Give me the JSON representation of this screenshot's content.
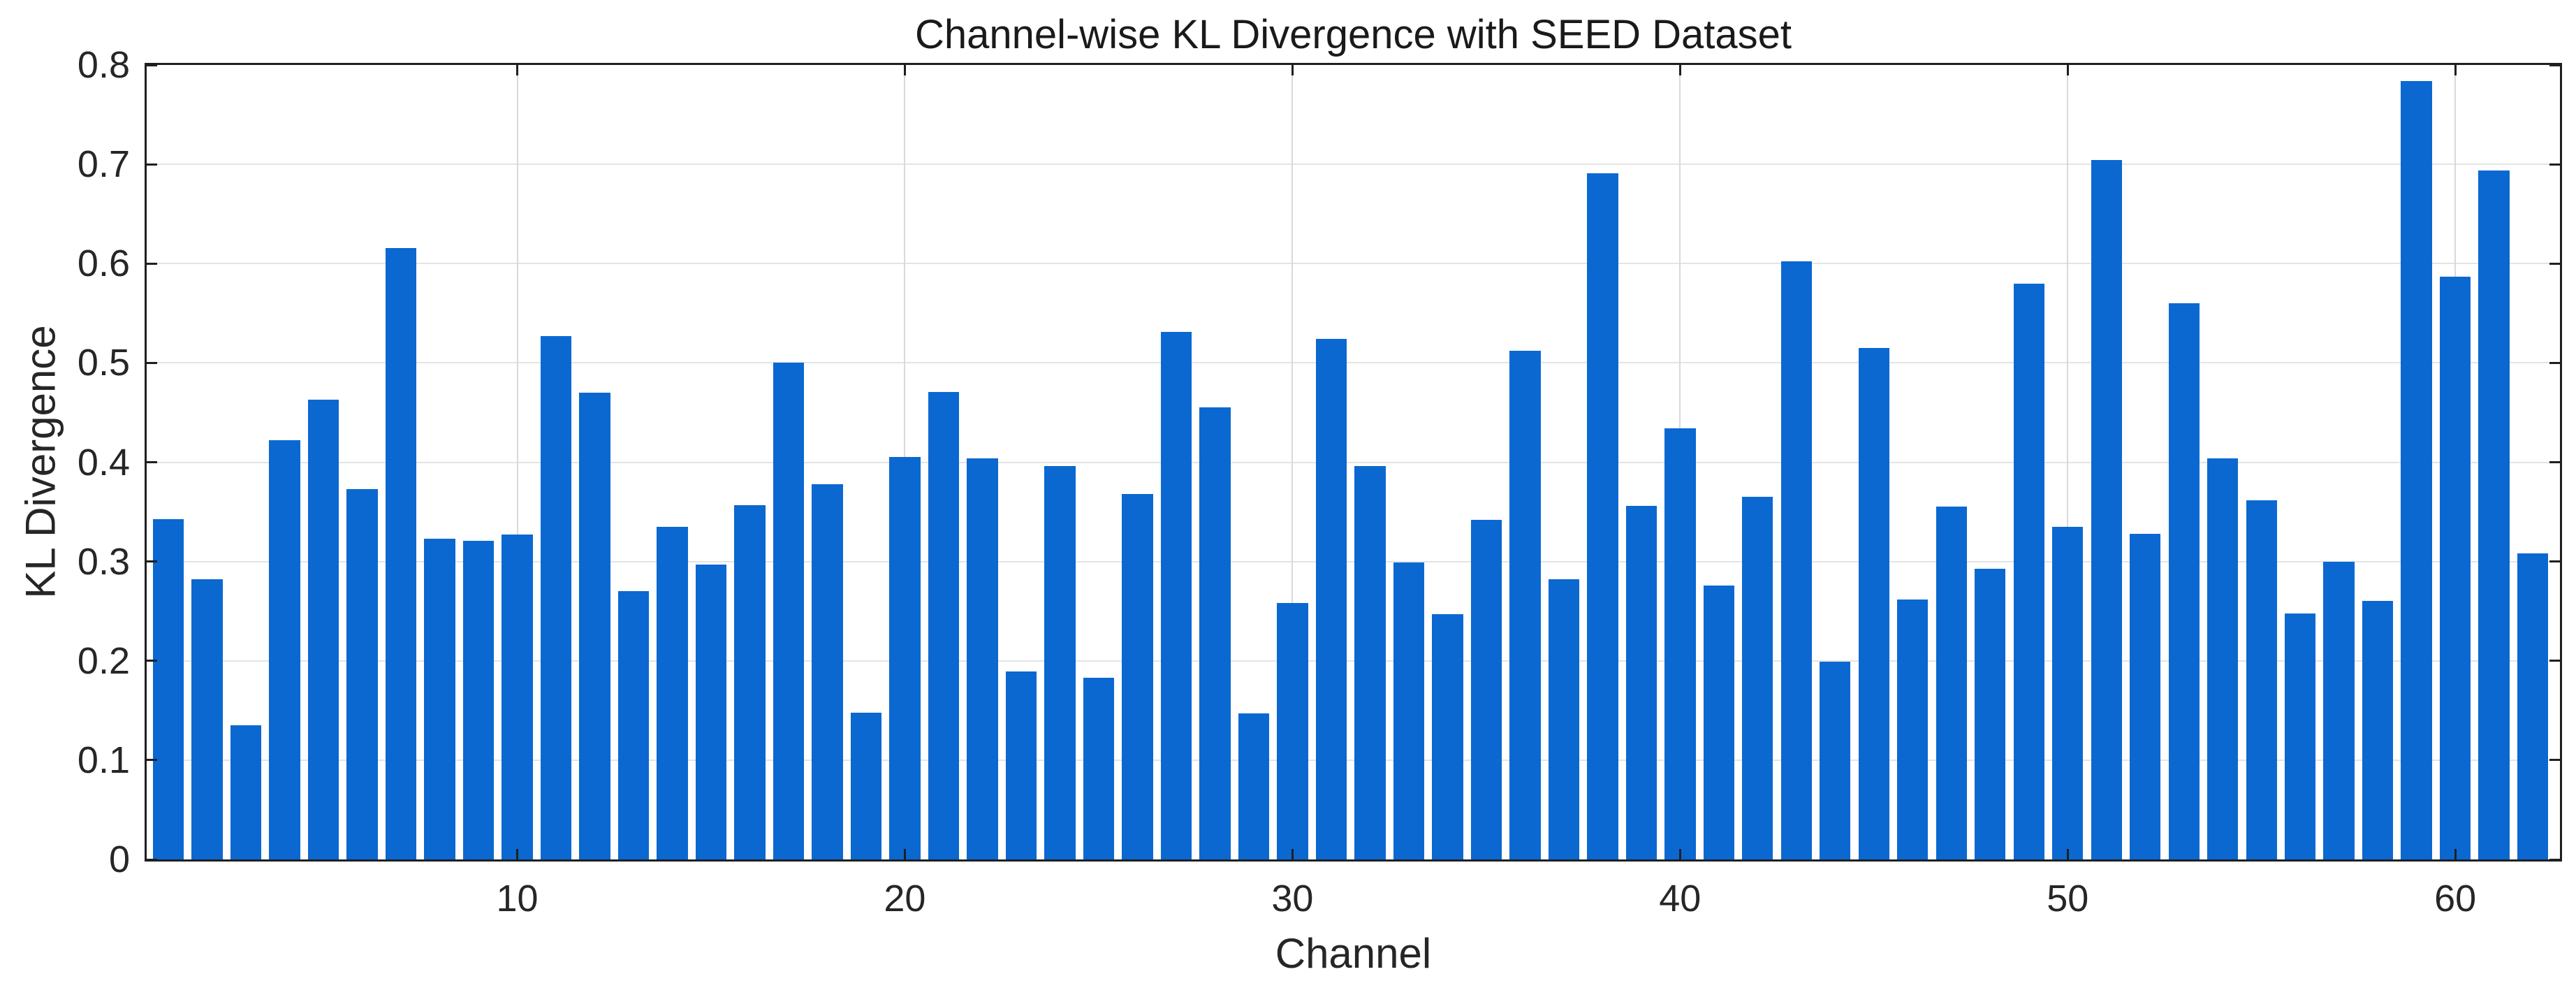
{
  "figure": {
    "title": "Channel-wise KL Divergence with SEED Dataset",
    "xlabel": "Channel",
    "ylabel": "KL Divergence",
    "background_color": "#ffffff"
  },
  "chart_data": {
    "type": "bar",
    "title": "Channel-wise KL Divergence with SEED Dataset",
    "xlabel": "Channel",
    "ylabel": "KL Divergence",
    "series_name": "KL Divergence per EEG channel",
    "categories": [
      1,
      2,
      3,
      4,
      5,
      6,
      7,
      8,
      9,
      10,
      11,
      12,
      13,
      14,
      15,
      16,
      17,
      18,
      19,
      20,
      21,
      22,
      23,
      24,
      25,
      26,
      27,
      28,
      29,
      30,
      31,
      32,
      33,
      34,
      35,
      36,
      37,
      38,
      39,
      40,
      41,
      42,
      43,
      44,
      45,
      46,
      47,
      48,
      49,
      50,
      51,
      52,
      53,
      54,
      55,
      56,
      57,
      58,
      59,
      60,
      61,
      62
    ],
    "values": [
      0.343,
      0.282,
      0.135,
      0.422,
      0.463,
      0.373,
      0.616,
      0.323,
      0.321,
      0.327,
      0.527,
      0.47,
      0.27,
      0.335,
      0.297,
      0.357,
      0.5,
      0.378,
      0.148,
      0.405,
      0.471,
      0.404,
      0.189,
      0.396,
      0.183,
      0.368,
      0.531,
      0.455,
      0.147,
      0.258,
      0.524,
      0.396,
      0.299,
      0.247,
      0.342,
      0.512,
      0.282,
      0.691,
      0.356,
      0.434,
      0.276,
      0.365,
      0.602,
      0.199,
      0.515,
      0.262,
      0.355,
      0.293,
      0.58,
      0.335,
      0.704,
      0.328,
      0.56,
      0.404,
      0.362,
      0.248,
      0.3,
      0.26,
      0.784,
      0.587,
      0.694,
      0.308
    ],
    "bar_color": "#0b68d1",
    "ylim": [
      0,
      0.8
    ],
    "xlim": [
      0.44,
      62.7
    ],
    "yticks": [
      0,
      0.1,
      0.2,
      0.3,
      0.4,
      0.5,
      0.6,
      0.7,
      0.8
    ],
    "ytick_labels": [
      "0",
      "0.1",
      "0.2",
      "0.3",
      "0.4",
      "0.5",
      "0.6",
      "0.7",
      "0.8"
    ],
    "xticks": [
      10,
      20,
      30,
      40,
      50,
      60
    ],
    "xtick_labels": [
      "10",
      "20",
      "30",
      "40",
      "50",
      "60"
    ],
    "grid": "on",
    "legend": "none",
    "bar_width_fraction": 0.8
  }
}
